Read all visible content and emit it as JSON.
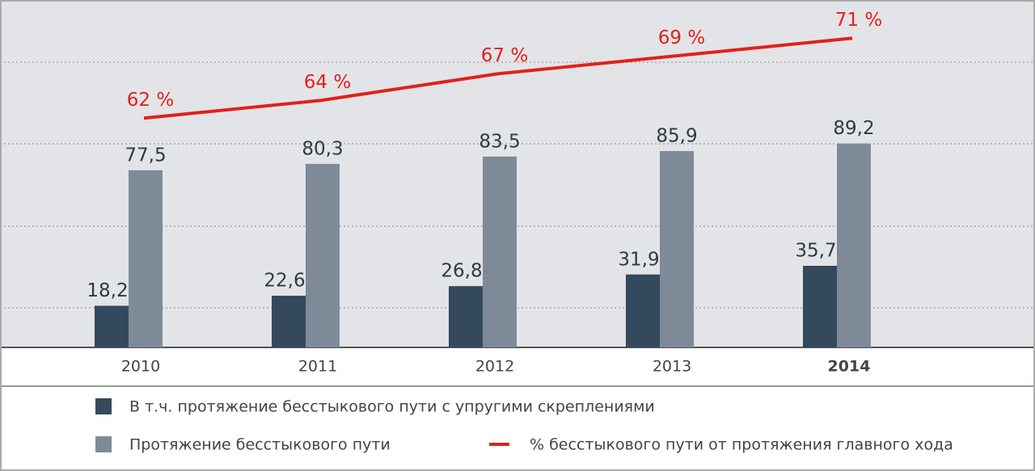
{
  "chart_data": {
    "type": "bar",
    "categories": [
      "2010",
      "2011",
      "2012",
      "2013",
      "2014"
    ],
    "series": [
      {
        "name": "В т.ч. протяжение бесстыкового пути с упругими скреплениями",
        "color": "#34495c",
        "values": [
          18.2,
          22.6,
          26.8,
          31.9,
          35.7
        ],
        "value_labels": [
          "18,2",
          "22,6",
          "26,8",
          "31,9",
          "35,7"
        ]
      },
      {
        "name": "Протяжение бесстыкового пути",
        "color": "#7f8a98",
        "values": [
          77.5,
          80.3,
          83.5,
          85.9,
          89.2
        ],
        "value_labels": [
          "77,5",
          "80,3",
          "83,5",
          "85,9",
          "89,2"
        ]
      },
      {
        "name": "% бесстыкового пути от протяжения главного хода",
        "type": "line",
        "axis": "y2",
        "color": "#e3201b",
        "values": [
          62,
          64,
          67,
          69,
          71
        ],
        "value_labels": [
          "62 %",
          "64 %",
          "67 %",
          "69 %",
          "71 %"
        ]
      }
    ],
    "ylim": [
      0,
      152
    ],
    "y2lim": [
      36.2,
      75.3
    ],
    "grid": true
  }
}
